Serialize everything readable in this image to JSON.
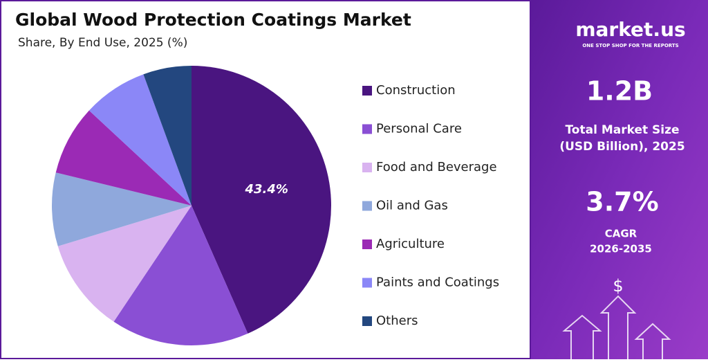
{
  "chart_data": {
    "type": "pie",
    "title": "Global Wood Protection Coatings Market",
    "subtitle": "Share, By End Use, 2025 (%)",
    "categories": [
      "Construction",
      "Personal Care",
      "Food and Beverage",
      "Oil and Gas",
      "Agriculture",
      "Paints and Coatings",
      "Others"
    ],
    "values": [
      43.4,
      16,
      10.9,
      8.5,
      8.1,
      7.5,
      5.6
    ],
    "value_labels": [
      "43.4%",
      null,
      null,
      null,
      null,
      null,
      null
    ],
    "colors": [
      "#4a1580",
      "#8a4fd4",
      "#d9b3f0",
      "#8fa8dc",
      "#9b2ab5",
      "#8b87f7",
      "#23477f"
    ]
  },
  "panel": {
    "brand": "market.us",
    "tagline": "ONE STOP SHOP FOR THE REPORTS",
    "market_size": "1.2B",
    "market_size_label_1": "Total Market Size",
    "market_size_label_2": "(USD Billion), 2025",
    "cagr": "3.7%",
    "cagr_label_1": "CAGR",
    "cagr_label_2": "2026-2035",
    "currency_icon": "$"
  }
}
